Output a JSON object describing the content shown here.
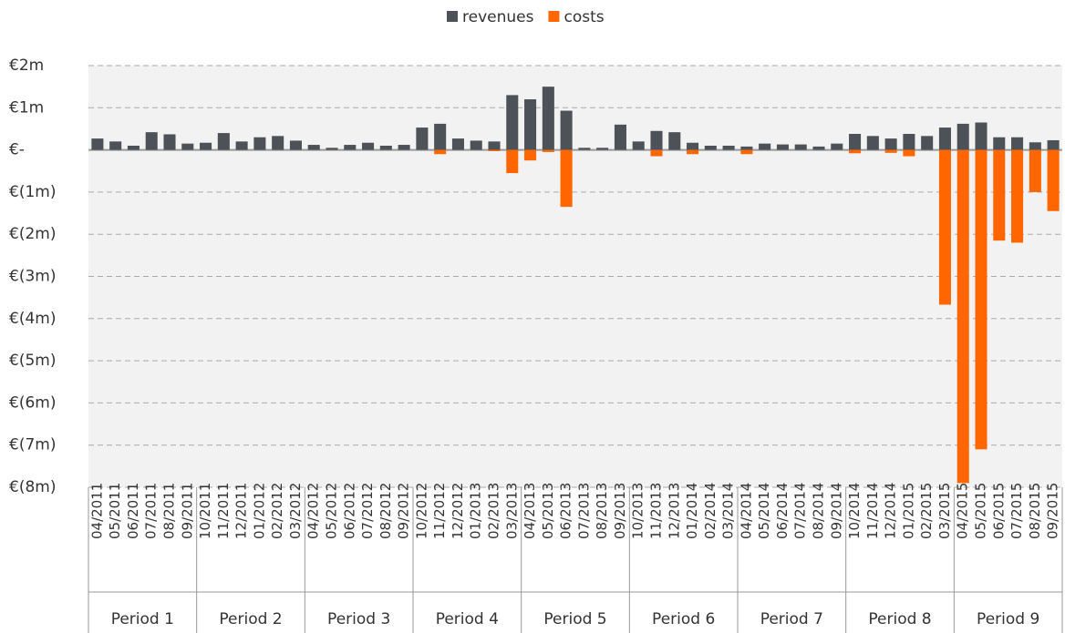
{
  "chart_data": {
    "type": "bar",
    "categories": [
      "04/2011",
      "05/2011",
      "06/2011",
      "07/2011",
      "08/2011",
      "09/2011",
      "10/2011",
      "11/2011",
      "12/2011",
      "01/2012",
      "02/2012",
      "03/2012",
      "04/2012",
      "05/2012",
      "06/2012",
      "07/2012",
      "08/2012",
      "09/2012",
      "10/2012",
      "11/2012",
      "12/2012",
      "01/2013",
      "02/2013",
      "03/2013",
      "04/2013",
      "05/2013",
      "06/2013",
      "07/2013",
      "08/2013",
      "09/2013",
      "10/2013",
      "11/2013",
      "12/2013",
      "01/2014",
      "02/2014",
      "03/2014",
      "04/2014",
      "05/2014",
      "06/2014",
      "07/2014",
      "08/2014",
      "09/2014",
      "10/2014",
      "11/2014",
      "12/2014",
      "01/2015",
      "02/2015",
      "03/2015",
      "04/2015",
      "05/2015",
      "06/2015",
      "07/2015",
      "08/2015",
      "09/2015"
    ],
    "groups": [
      "Period 1",
      "Period 2",
      "Period 3",
      "Period 4",
      "Period 5",
      "Period 6",
      "Period 7",
      "Period 8",
      "Period 9"
    ],
    "series": [
      {
        "name": "revenues",
        "color": "#4d5258",
        "values": [
          0.27,
          0.2,
          0.1,
          0.42,
          0.37,
          0.15,
          0.17,
          0.4,
          0.2,
          0.3,
          0.33,
          0.22,
          0.12,
          0.05,
          0.12,
          0.17,
          0.1,
          0.12,
          0.53,
          0.62,
          0.27,
          0.22,
          0.2,
          1.3,
          1.2,
          1.5,
          0.93,
          0.05,
          0.05,
          0.6,
          0.2,
          0.45,
          0.42,
          0.17,
          0.1,
          0.1,
          0.08,
          0.15,
          0.13,
          0.13,
          0.08,
          0.15,
          0.38,
          0.33,
          0.27,
          0.38,
          0.33,
          0.53,
          0.62,
          0.65,
          0.3,
          0.3,
          0.18,
          0.23
        ]
      },
      {
        "name": "costs",
        "color": "#ff6600",
        "values": [
          0,
          0,
          0,
          0,
          0,
          0,
          0,
          0,
          0,
          0,
          0,
          0,
          0,
          0,
          0,
          0,
          0,
          0,
          0,
          -0.1,
          0,
          0,
          -0.03,
          -0.55,
          -0.25,
          -0.05,
          -1.35,
          0,
          0,
          0,
          0,
          -0.15,
          0,
          -0.1,
          0,
          0,
          -0.1,
          0,
          0,
          0,
          0,
          0,
          -0.08,
          0,
          -0.07,
          -0.15,
          0,
          -3.67,
          -7.9,
          -7.1,
          -2.15,
          -2.2,
          -1.0,
          -1.45
        ]
      }
    ],
    "ylim": [
      -8,
      2
    ],
    "yticks": [
      {
        "value": 2,
        "label": "€2m"
      },
      {
        "value": 1,
        "label": "€1m"
      },
      {
        "value": 0,
        "label": "€-"
      },
      {
        "value": -1,
        "label": "€(1m)"
      },
      {
        "value": -2,
        "label": "€(2m)"
      },
      {
        "value": -3,
        "label": "€(3m)"
      },
      {
        "value": -4,
        "label": "€(4m)"
      },
      {
        "value": -5,
        "label": "€(5m)"
      },
      {
        "value": -6,
        "label": "€(6m)"
      },
      {
        "value": -7,
        "label": "€(7m)"
      },
      {
        "value": -8,
        "label": "€(8m)"
      }
    ],
    "grid": true,
    "legend": "top"
  }
}
